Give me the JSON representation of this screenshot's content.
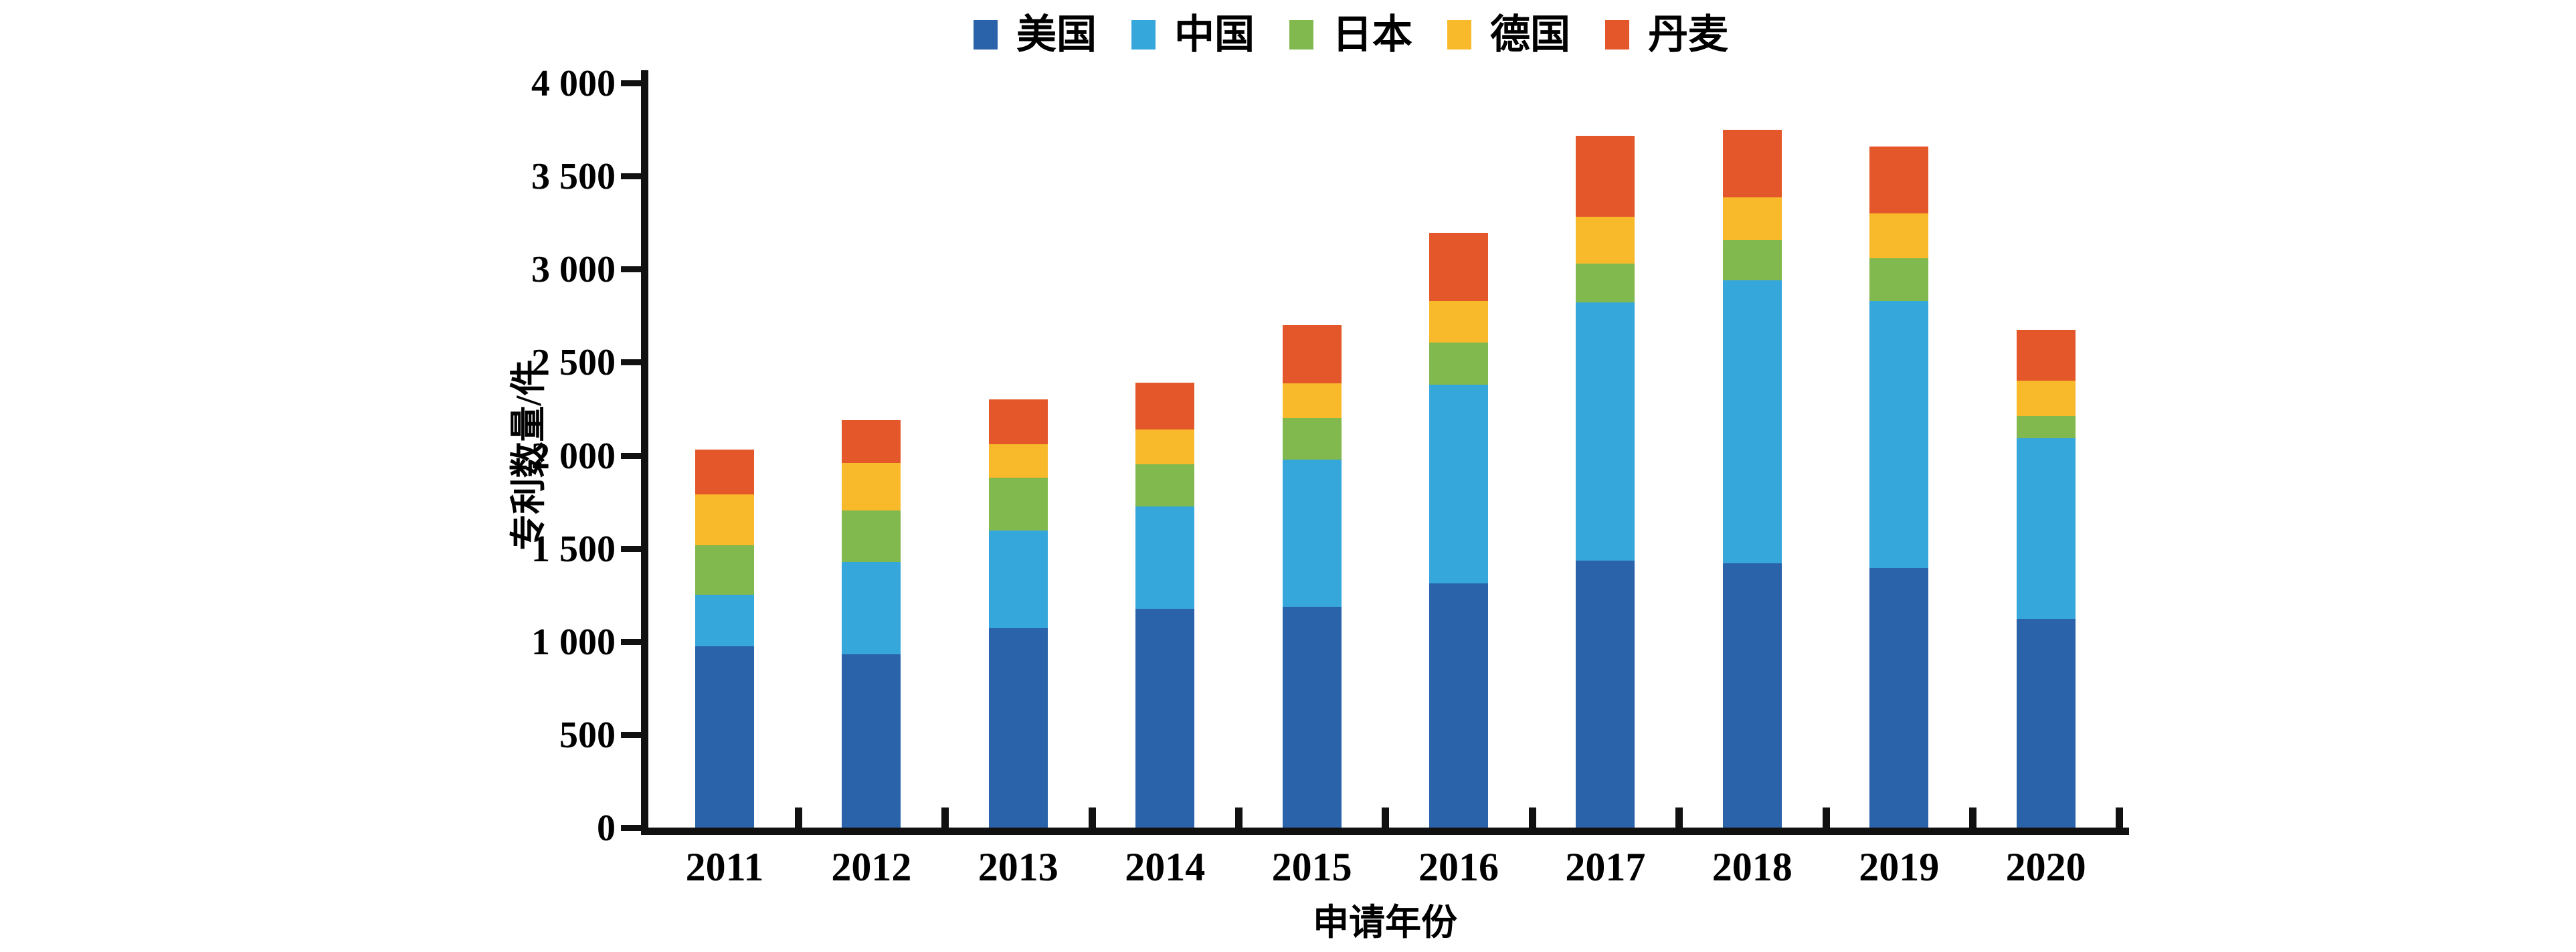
{
  "chart_data": {
    "type": "bar",
    "stacked": true,
    "title": "",
    "xlabel": "申请年份",
    "ylabel": "专利数量/件",
    "ylim": [
      0,
      4000
    ],
    "grid": false,
    "legend_position": "top",
    "categories": [
      "2011",
      "2012",
      "2013",
      "2014",
      "2015",
      "2016",
      "2017",
      "2018",
      "2019",
      "2020"
    ],
    "series": [
      {
        "key": "us",
        "name": "美国",
        "color": "#2A63A9",
        "values": [
          975,
          930,
          1070,
          1175,
          1185,
          1310,
          1435,
          1420,
          1395,
          1120
        ]
      },
      {
        "key": "cn",
        "name": "中国",
        "color": "#36A7DA",
        "values": [
          275,
          495,
          525,
          550,
          790,
          1070,
          1385,
          1520,
          1435,
          970
        ]
      },
      {
        "key": "jp",
        "name": "日本",
        "color": "#82B94E",
        "values": [
          265,
          280,
          285,
          225,
          225,
          225,
          210,
          215,
          230,
          120
        ]
      },
      {
        "key": "de",
        "name": "德国",
        "color": "#F8BA2B",
        "values": [
          275,
          255,
          180,
          190,
          185,
          225,
          250,
          230,
          240,
          190
        ]
      },
      {
        "key": "dk",
        "name": "丹麦",
        "color": "#E4572B",
        "values": [
          240,
          230,
          240,
          250,
          315,
          365,
          435,
          365,
          360,
          275
        ]
      }
    ],
    "totals": [
      2030,
      2190,
      2300,
      2390,
      2700,
      3195,
      3715,
      3750,
      3660,
      2675
    ],
    "y_ticks": [
      {
        "v": 0,
        "label": "0"
      },
      {
        "v": 500,
        "label": "500"
      },
      {
        "v": 1000,
        "label": "1 000"
      },
      {
        "v": 1500,
        "label": "1 500"
      },
      {
        "v": 2000,
        "label": "2 000"
      },
      {
        "v": 2500,
        "label": "2 500"
      },
      {
        "v": 3000,
        "label": "3 000"
      },
      {
        "v": 3500,
        "label": "3 500"
      },
      {
        "v": 4000,
        "label": "4 000"
      }
    ],
    "axis_color": "#111111",
    "text_color": "#000000"
  }
}
